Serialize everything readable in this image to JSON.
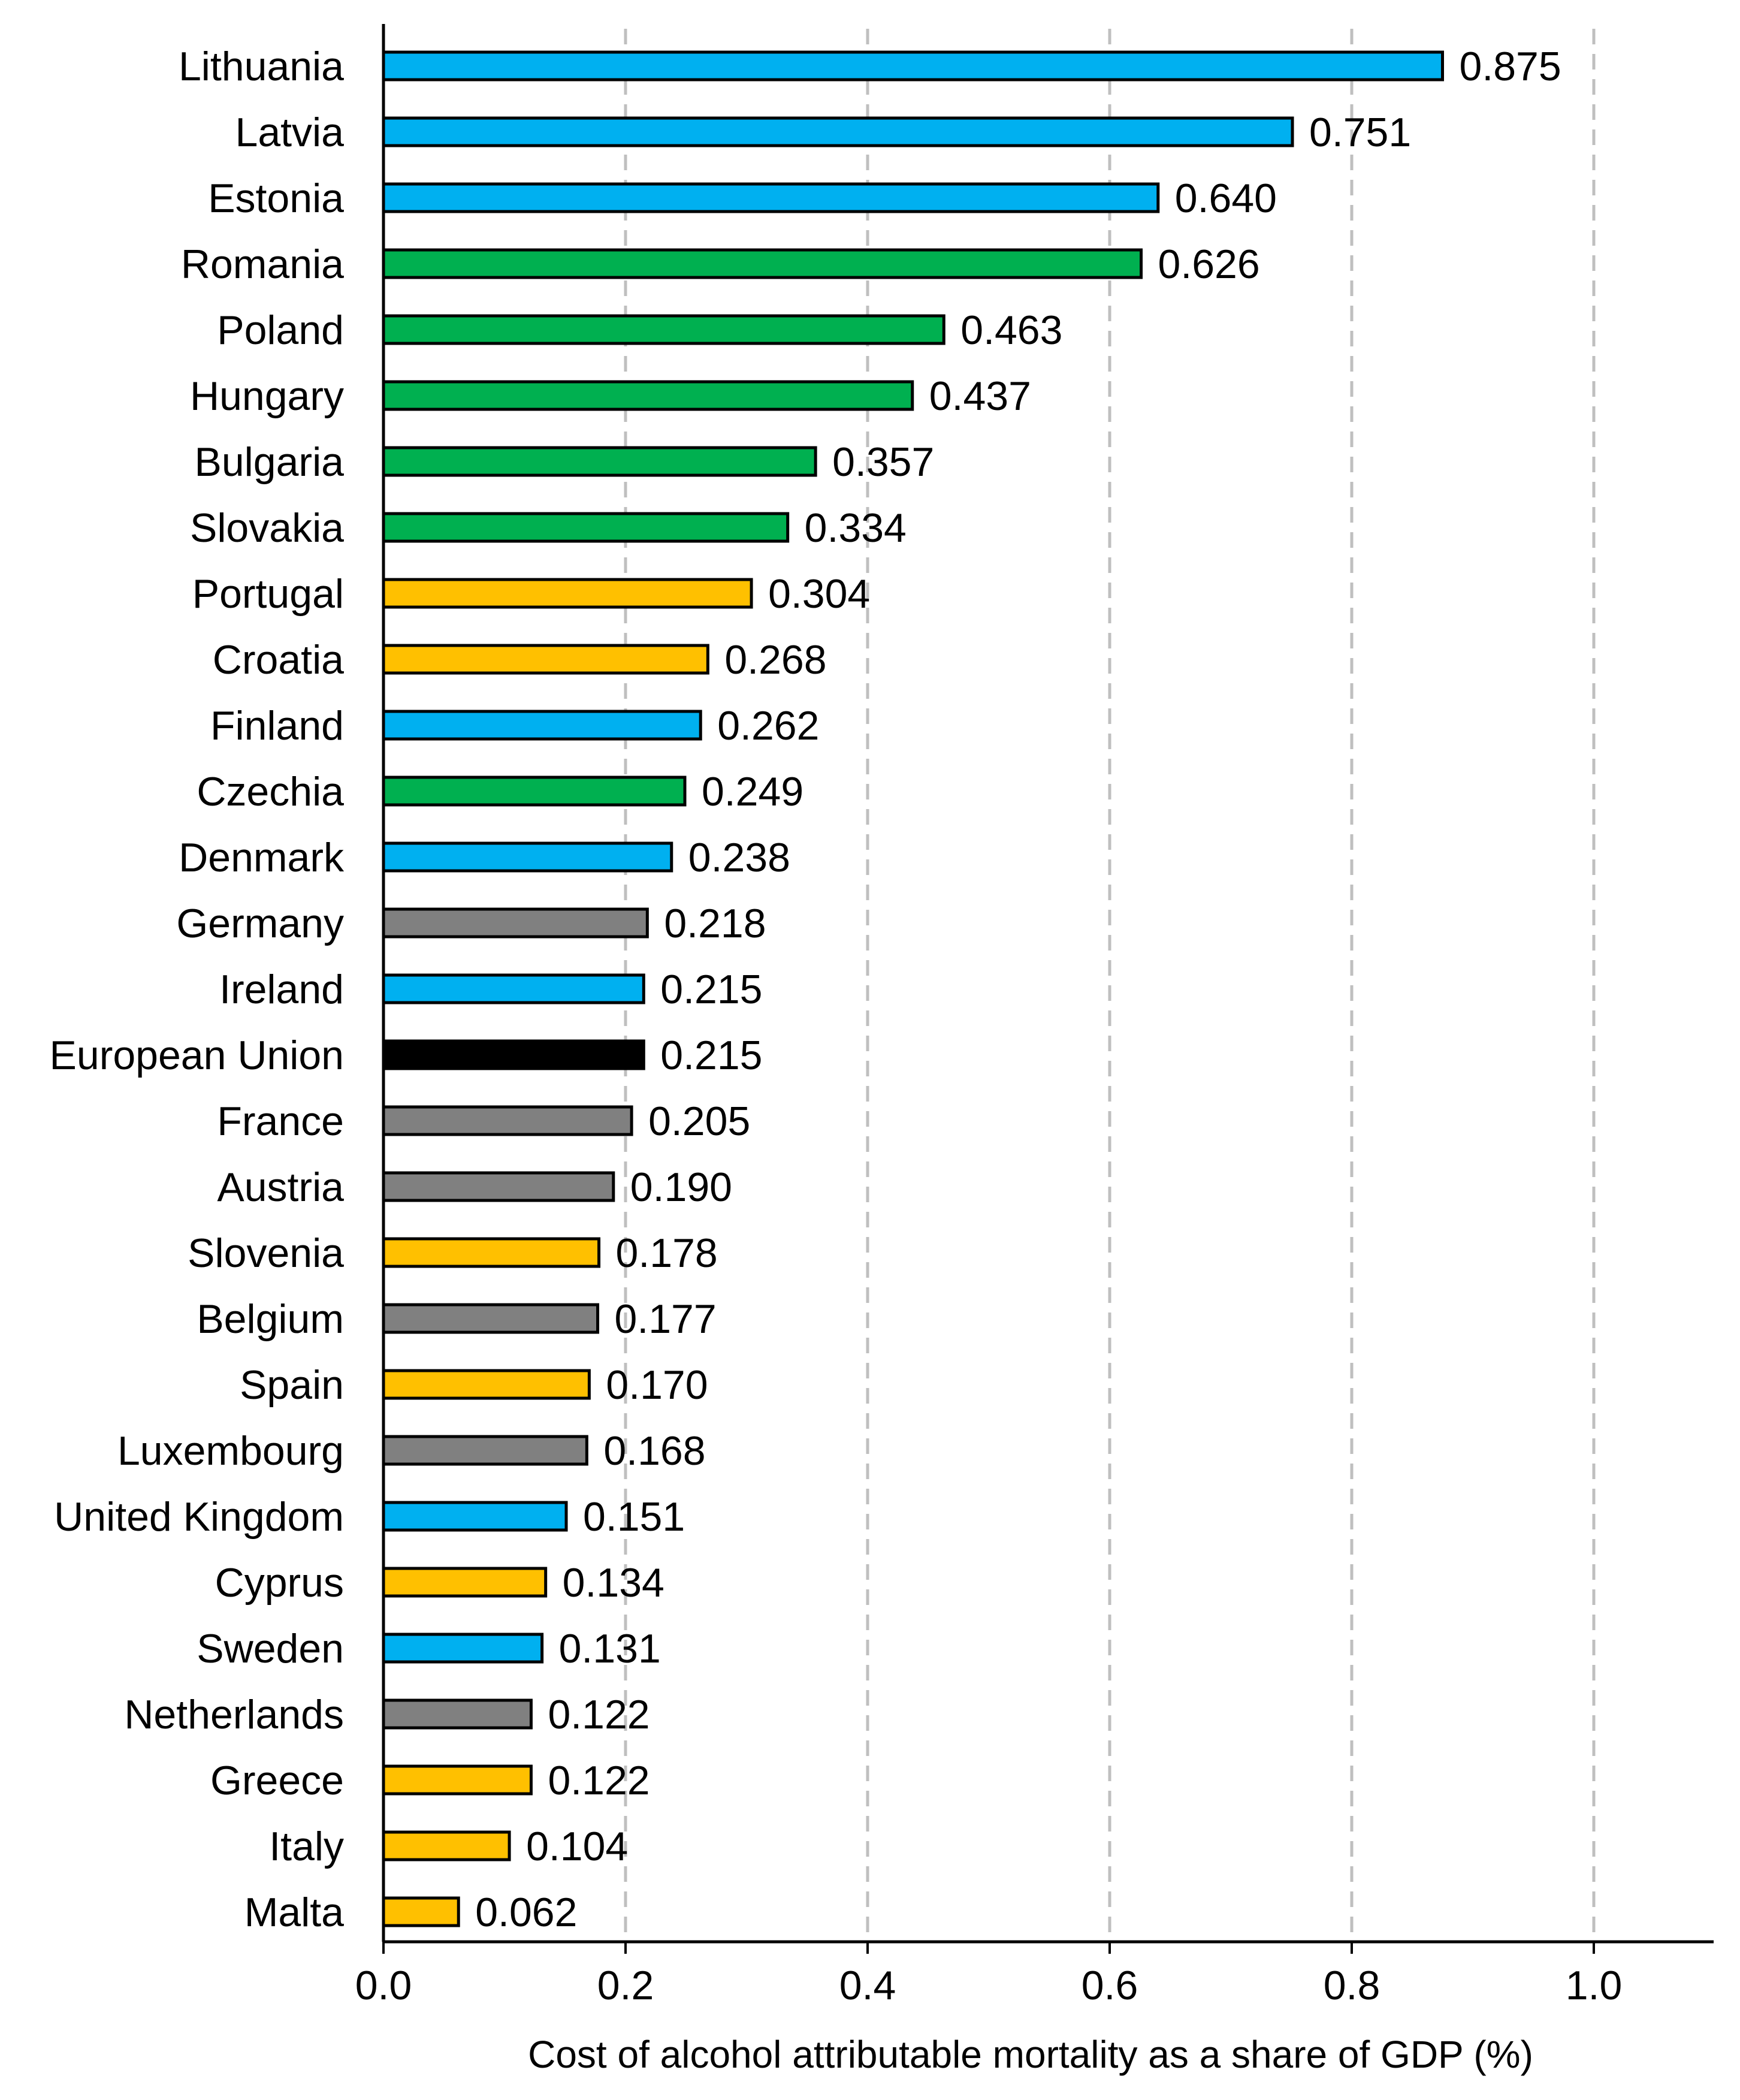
{
  "chart_data": {
    "type": "bar",
    "orientation": "horizontal",
    "xlabel": "Cost of alcohol attributable mortality as a share of GDP (%)",
    "xlim": [
      0,
      1.1
    ],
    "x_ticks": [
      "0.0",
      "0.2",
      "0.4",
      "0.6",
      "0.8",
      "1.0"
    ],
    "grid": "vertical dashed",
    "colors": {
      "blue": "#00B0F0",
      "green": "#00B050",
      "yellow": "#FFC000",
      "gray": "#808080",
      "black": "#000000"
    },
    "bars": [
      {
        "category": "Lithuania",
        "value": 0.875,
        "label": "0.875",
        "color": "#00B0F0"
      },
      {
        "category": "Latvia",
        "value": 0.751,
        "label": "0.751",
        "color": "#00B0F0"
      },
      {
        "category": "Estonia",
        "value": 0.64,
        "label": "0.640",
        "color": "#00B0F0"
      },
      {
        "category": "Romania",
        "value": 0.626,
        "label": "0.626",
        "color": "#00B050"
      },
      {
        "category": "Poland",
        "value": 0.463,
        "label": "0.463",
        "color": "#00B050"
      },
      {
        "category": "Hungary",
        "value": 0.437,
        "label": "0.437",
        "color": "#00B050"
      },
      {
        "category": "Bulgaria",
        "value": 0.357,
        "label": "0.357",
        "color": "#00B050"
      },
      {
        "category": "Slovakia",
        "value": 0.334,
        "label": "0.334",
        "color": "#00B050"
      },
      {
        "category": "Portugal",
        "value": 0.304,
        "label": "0.304",
        "color": "#FFC000"
      },
      {
        "category": "Croatia",
        "value": 0.268,
        "label": "0.268",
        "color": "#FFC000"
      },
      {
        "category": "Finland",
        "value": 0.262,
        "label": "0.262",
        "color": "#00B0F0"
      },
      {
        "category": "Czechia",
        "value": 0.249,
        "label": "0.249",
        "color": "#00B050"
      },
      {
        "category": "Denmark",
        "value": 0.238,
        "label": "0.238",
        "color": "#00B0F0"
      },
      {
        "category": "Germany",
        "value": 0.218,
        "label": "0.218",
        "color": "#808080"
      },
      {
        "category": "Ireland",
        "value": 0.215,
        "label": "0.215",
        "color": "#00B0F0"
      },
      {
        "category": "European Union",
        "value": 0.215,
        "label": "0.215",
        "color": "#000000"
      },
      {
        "category": "France",
        "value": 0.205,
        "label": "0.205",
        "color": "#808080"
      },
      {
        "category": "Austria",
        "value": 0.19,
        "label": "0.190",
        "color": "#808080"
      },
      {
        "category": "Slovenia",
        "value": 0.178,
        "label": "0.178",
        "color": "#FFC000"
      },
      {
        "category": "Belgium",
        "value": 0.177,
        "label": "0.177",
        "color": "#808080"
      },
      {
        "category": "Spain",
        "value": 0.17,
        "label": "0.170",
        "color": "#FFC000"
      },
      {
        "category": "Luxembourg",
        "value": 0.168,
        "label": "0.168",
        "color": "#808080"
      },
      {
        "category": "United Kingdom",
        "value": 0.151,
        "label": "0.151",
        "color": "#00B0F0"
      },
      {
        "category": "Cyprus",
        "value": 0.134,
        "label": "0.134",
        "color": "#FFC000"
      },
      {
        "category": "Sweden",
        "value": 0.131,
        "label": "0.131",
        "color": "#00B0F0"
      },
      {
        "category": "Netherlands",
        "value": 0.122,
        "label": "0.122",
        "color": "#808080"
      },
      {
        "category": "Greece",
        "value": 0.122,
        "label": "0.122",
        "color": "#FFC000"
      },
      {
        "category": "Italy",
        "value": 0.104,
        "label": "0.104",
        "color": "#FFC000"
      },
      {
        "category": "Malta",
        "value": 0.062,
        "label": "0.062",
        "color": "#FFC000"
      }
    ]
  }
}
